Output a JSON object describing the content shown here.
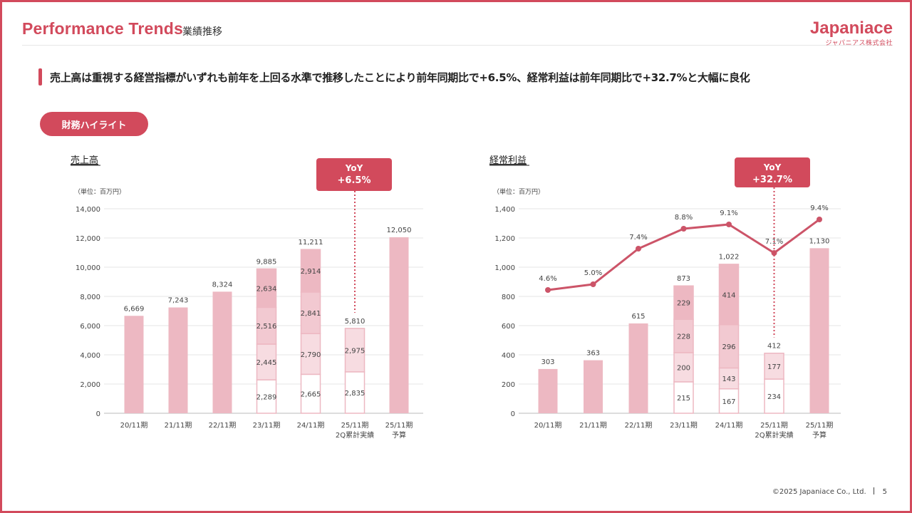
{
  "header": {
    "title": "Performance Trends",
    "subtitle": "業績推移",
    "logo_main": "Japaniace",
    "logo_sub": "ジャパニアス株式会社"
  },
  "lead_text": "売上高は重視する経営指標がいずれも前年を上回る水準で推移したことにより前年同期比で+6.5%、経常利益は前年同期比で+32.7%と大幅に良化",
  "section_pill": "財務ハイライト",
  "footer": {
    "copyright": "©2025 Japaniace Co., Ltd.",
    "page": "5"
  },
  "colors": {
    "accent": "#d24a5c",
    "bar": "#edb8c2",
    "bar_light": "#f7dce1",
    "line": "#cc5468"
  },
  "chart_data": [
    {
      "type": "bar",
      "title": "売上高",
      "unit": "（単位：百万円）",
      "categories": [
        "20/11期",
        "21/11期",
        "22/11期",
        "23/11期",
        "24/11期",
        "25/11期\n2Q累計実績",
        "25/11期\n予算"
      ],
      "totals": [
        6669,
        7243,
        8324,
        9885,
        11211,
        5810,
        12050
      ],
      "total_labels": [
        "6,669",
        "7,243",
        "8,324",
        "9,885",
        "11,211",
        "5,810",
        "12,050"
      ],
      "quarters": [
        null,
        null,
        null,
        [
          2289,
          2445,
          2516,
          2634
        ],
        [
          2665,
          2790,
          2841,
          2914
        ],
        [
          2835,
          2975
        ],
        null
      ],
      "quarter_labels": [
        null,
        null,
        null,
        [
          "2,289",
          "2,445",
          "2,516",
          "2,634"
        ],
        [
          "2,665",
          "2,790",
          "2,841",
          "2,914"
        ],
        [
          "2,835",
          "2,975"
        ],
        null
      ],
      "ylim": [
        0,
        14000
      ],
      "yticks": [
        "0",
        "2,000",
        "4,000",
        "6,000",
        "8,000",
        "10,000",
        "12,000",
        "14,000"
      ],
      "yoy": {
        "line1": "YoY",
        "line2": "+6.5%",
        "category_index": 5
      },
      "grid": true
    },
    {
      "type": "bar+line",
      "title": "経常利益",
      "unit": "（単位：百万円）",
      "categories": [
        "20/11期",
        "21/11期",
        "22/11期",
        "23/11期",
        "24/11期",
        "25/11期\n2Q累計実績",
        "25/11期\n予算"
      ],
      "totals": [
        303,
        363,
        615,
        873,
        1022,
        412,
        1130
      ],
      "total_labels": [
        "303",
        "363",
        "615",
        "873",
        "1,022",
        "412",
        "1,130"
      ],
      "quarters": [
        null,
        null,
        null,
        [
          215,
          200,
          228,
          229
        ],
        [
          167,
          143,
          296,
          414
        ],
        [
          234,
          177
        ],
        null
      ],
      "quarter_labels": [
        null,
        null,
        null,
        [
          "215",
          "200",
          "228",
          "229"
        ],
        [
          "167",
          "143",
          "296",
          "414"
        ],
        [
          "234",
          "177"
        ],
        null
      ],
      "margin_pct": [
        4.6,
        5.0,
        7.4,
        8.8,
        9.1,
        7.1,
        9.4
      ],
      "margin_labels": [
        "4.6%",
        "5.0%",
        "7.4%",
        "8.8%",
        "9.1%",
        "7.1%",
        "9.4%"
      ],
      "ylim": [
        0,
        1400
      ],
      "yticks": [
        "0",
        "200",
        "400",
        "600",
        "800",
        "1,000",
        "1,200",
        "1,400"
      ],
      "yoy": {
        "line1": "YoY",
        "line2": "+32.7%",
        "category_index": 5
      },
      "grid": true
    }
  ]
}
